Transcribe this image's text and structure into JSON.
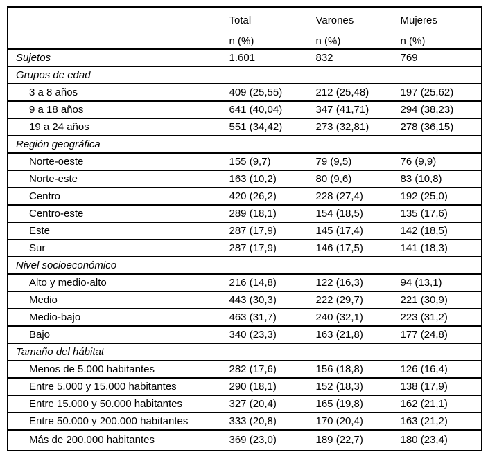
{
  "colors": {
    "border": "#000000",
    "text": "#000000",
    "background": "#ffffff"
  },
  "table": {
    "header": {
      "columns": [
        {
          "title": "",
          "sub": ""
        },
        {
          "title": "Total",
          "sub": "n (%)"
        },
        {
          "title": "Varones",
          "sub": "n (%)"
        },
        {
          "title": "Mujeres",
          "sub": "n (%)"
        }
      ]
    },
    "rows": [
      {
        "type": "subject",
        "label": "Sujetos",
        "values": [
          "1.601",
          "832",
          "769"
        ]
      },
      {
        "type": "section",
        "label": "Grupos de edad",
        "values": []
      },
      {
        "type": "item",
        "label": "3 a 8 años",
        "values": [
          "409 (25,55)",
          "212 (25,48)",
          "197 (25,62)"
        ]
      },
      {
        "type": "item",
        "label": "9 a 18 años",
        "values": [
          "641 (40,04)",
          "347 (41,71)",
          "294 (38,23)"
        ]
      },
      {
        "type": "item",
        "label": "19 a 24 años",
        "values": [
          "551 (34,42)",
          "273 (32,81)",
          "278 (36,15)"
        ]
      },
      {
        "type": "section",
        "label": "Región geográfica",
        "values": []
      },
      {
        "type": "item",
        "label": "Norte-oeste",
        "values": [
          "155 (9,7)",
          "79 (9,5)",
          "76 (9,9)"
        ]
      },
      {
        "type": "item",
        "label": "Norte-este",
        "values": [
          "163 (10,2)",
          "80 (9,6)",
          "83 (10,8)"
        ]
      },
      {
        "type": "item",
        "label": "Centro",
        "values": [
          "420 (26,2)",
          "228 (27,4)",
          "192 (25,0)"
        ]
      },
      {
        "type": "item",
        "label": "Centro-este",
        "values": [
          "289 (18,1)",
          "154 (18,5)",
          "135 (17,6)"
        ]
      },
      {
        "type": "item",
        "label": "Este",
        "values": [
          "287 (17,9)",
          "145 (17,4)",
          "142 (18,5)"
        ]
      },
      {
        "type": "item",
        "label": "Sur",
        "values": [
          "287 (17,9)",
          "146 (17,5)",
          "141 (18,3)"
        ]
      },
      {
        "type": "section",
        "label": "Nivel socioeconómico",
        "values": []
      },
      {
        "type": "item",
        "label": "Alto y medio-alto",
        "values": [
          "216 (14,8)",
          "122 (16,3)",
          "94 (13,1)"
        ]
      },
      {
        "type": "item",
        "label": "Medio",
        "values": [
          "443 (30,3)",
          "222 (29,7)",
          "221 (30,9)"
        ]
      },
      {
        "type": "item",
        "label": "Medio-bajo",
        "values": [
          "463 (31,7)",
          "240 (32,1)",
          "223 (31,2)"
        ]
      },
      {
        "type": "item",
        "label": "Bajo",
        "values": [
          "340 (23,3)",
          "163 (21,8)",
          "177 (24,8)"
        ]
      },
      {
        "type": "section",
        "label": "Tamaño del hábitat",
        "values": []
      },
      {
        "type": "item",
        "label": "Menos de 5.000 habitantes",
        "values": [
          "282 (17,6)",
          "156 (18,8)",
          "126 (16,4)"
        ]
      },
      {
        "type": "item",
        "label": "Entre 5.000 y 15.000 habitantes",
        "values": [
          "290 (18,1)",
          "152 (18,3)",
          "138 (17,9)"
        ]
      },
      {
        "type": "item",
        "label": "Entre 15.000 y 50.000 habitantes",
        "values": [
          "327 (20,4)",
          "165 (19,8)",
          "162 (21,1)"
        ]
      },
      {
        "type": "item",
        "label": "Entre 50.000 y 200.000 habitantes",
        "values": [
          "333 (20,8)",
          "170 (20,4)",
          "163 (21,2)"
        ]
      },
      {
        "type": "item",
        "label": "Más de 200.000 habitantes",
        "values": [
          "369 (23,0)",
          "189 (22,7)",
          "180 (23,4)"
        ]
      }
    ]
  }
}
